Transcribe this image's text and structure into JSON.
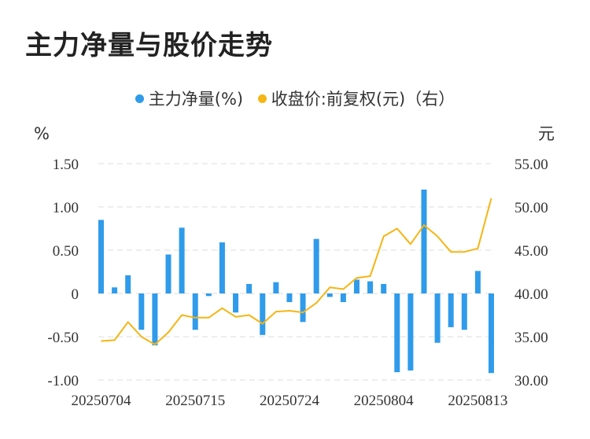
{
  "title": "主力净量与股价走势",
  "chart_data": {
    "type": "bar+line",
    "left_unit": "%",
    "right_unit": "元",
    "left_ticks": [
      "1.50",
      "1.00",
      "0.50",
      "0",
      "-0.50",
      "-1.00"
    ],
    "right_ticks": [
      "55.00",
      "50.00",
      "45.00",
      "40.00",
      "35.00",
      "30.00"
    ],
    "ylim_left": [
      -1.0,
      1.5
    ],
    "ylim_right": [
      30,
      55
    ],
    "x_labels": [
      {
        "index": 0,
        "label": "20250704"
      },
      {
        "index": 7,
        "label": "20250715"
      },
      {
        "index": 14,
        "label": "20250724"
      },
      {
        "index": 21,
        "label": "20250804"
      },
      {
        "index": 28,
        "label": "20250813"
      }
    ],
    "grid": true,
    "legend_position": "top-center",
    "series": [
      {
        "name": "主力净量(%)",
        "type": "bar",
        "axis": "left",
        "color": "#2f9bea",
        "values": [
          0.85,
          0.07,
          0.21,
          -0.42,
          -0.6,
          0.45,
          0.76,
          -0.42,
          -0.03,
          0.59,
          -0.22,
          0.11,
          -0.48,
          0.13,
          -0.1,
          -0.33,
          0.63,
          -0.04,
          -0.1,
          0.16,
          0.14,
          0.11,
          -0.91,
          -0.89,
          1.2,
          -0.57,
          -0.39,
          -0.42,
          0.26,
          -0.92
        ]
      },
      {
        "name": "收盘价:前复权(元)（右）",
        "type": "line",
        "axis": "right",
        "color": "#f5b514",
        "values": [
          34.5,
          34.6,
          36.7,
          35.0,
          34.1,
          35.5,
          37.5,
          37.2,
          37.2,
          38.3,
          37.3,
          37.5,
          36.5,
          37.9,
          38.0,
          37.8,
          38.9,
          40.7,
          40.5,
          41.8,
          42.0,
          46.6,
          47.5,
          45.7,
          47.9,
          46.6,
          44.8,
          44.8,
          45.2,
          51.0
        ]
      }
    ]
  }
}
